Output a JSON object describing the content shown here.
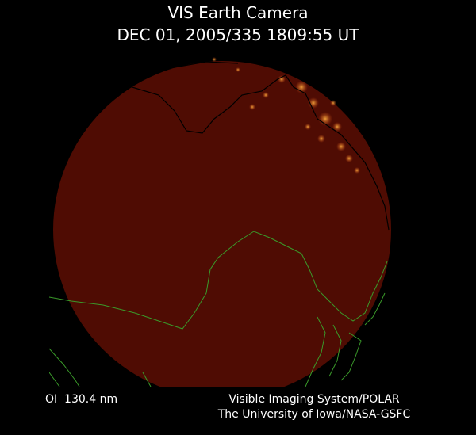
{
  "header": {
    "title": "VIS Earth Camera",
    "timestamp": "DEC 01, 2005/335 1809:55 UT"
  },
  "footer": {
    "wavelength": "OI  130.4 nm",
    "instrument": "Visible Imaging System/POLAR",
    "institution": "The University of Iowa/NASA-GSFC"
  }
}
